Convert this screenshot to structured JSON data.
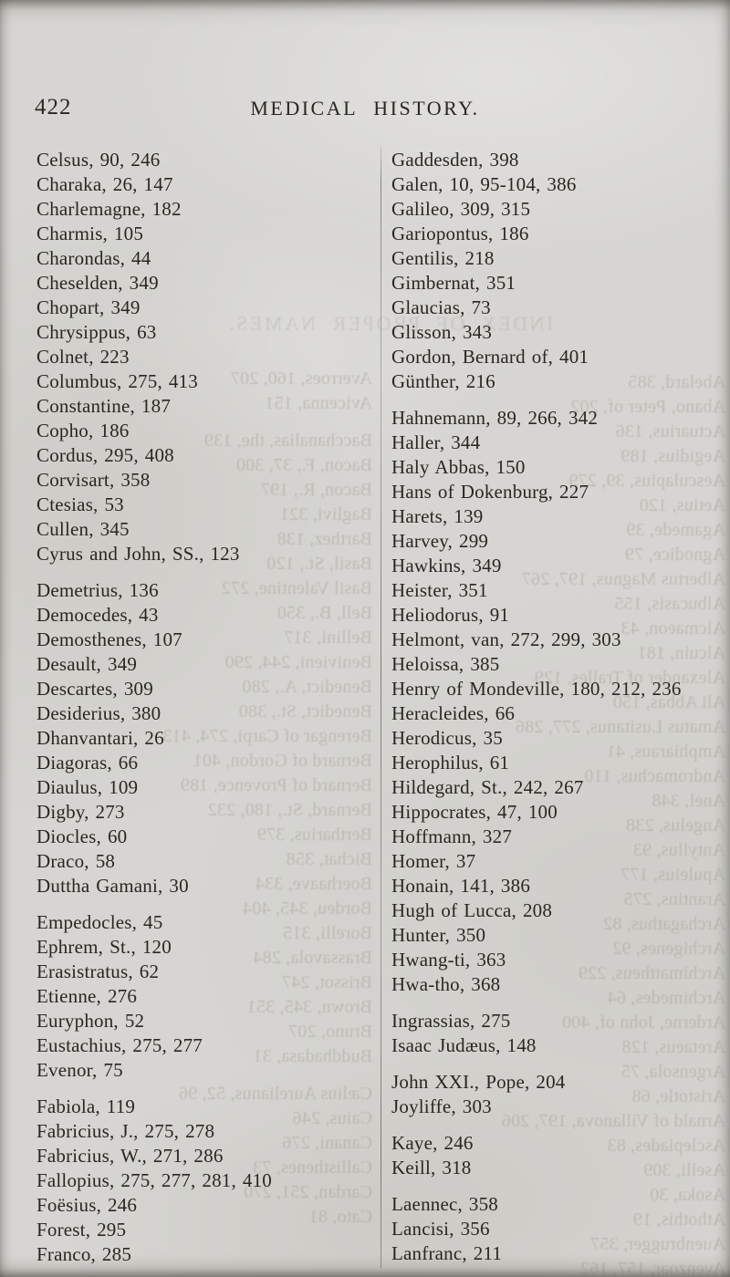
{
  "page": {
    "number": "422",
    "title": "MEDICAL HISTORY."
  },
  "index": {
    "left_column": [
      [
        "Celsus, 90, 246",
        "Charaka, 26, 147",
        "Charlemagne, 182",
        "Charmis, 105",
        "Charondas, 44",
        "Cheselden, 349",
        "Chopart, 349",
        "Chrysippus, 63",
        "Colnet, 223",
        "Columbus, 275, 413",
        "Constantine, 187",
        "Copho, 186",
        "Cordus, 295, 408",
        "Corvisart, 358",
        "Ctesias, 53",
        "Cullen, 345",
        "Cyrus and John, SS., 123"
      ],
      [
        "Demetrius, 136",
        "Democedes, 43",
        "Demosthenes, 107",
        "Desault, 349",
        "Descartes, 309",
        "Desiderius, 380",
        "Dhanvantari, 26",
        "Diagoras, 66",
        "Diaulus, 109",
        "Digby, 273",
        "Diocles, 60",
        "Draco, 58",
        "Duttha Gamani, 30"
      ],
      [
        "Empedocles, 45",
        "Ephrem, St., 120",
        "Erasistratus, 62",
        "Etienne, 276",
        "Euryphon, 52",
        "Eustachius, 275, 277",
        "Evenor, 75"
      ],
      [
        "Fabiola, 119",
        "Fabricius, J., 275, 278",
        "Fabricius, W., 271, 286",
        "Fallopius, 275, 277, 281, 410",
        "Foësius, 246",
        "Forest, 295",
        "Franco, 285"
      ]
    ],
    "right_column": [
      [
        "Gaddesden, 398",
        "Galen, 10, 95-104, 386",
        "Galileo, 309, 315",
        "Gariopontus, 186",
        "Gentilis, 218",
        "Gimbernat, 351",
        "Glaucias, 73",
        "Glisson, 343",
        "Gordon, Bernard of, 401",
        "Günther, 216"
      ],
      [
        "Hahnemann, 89, 266, 342",
        "Haller, 344",
        "Haly Abbas, 150",
        "Hans of Dokenburg, 227",
        "Harets, 139",
        "Harvey, 299",
        "Hawkins, 349",
        "Heister, 351",
        "Heliodorus, 91",
        "Helmont, van, 272, 299, 303",
        "Heloissa, 385",
        "Henry of Mondeville, 180, 212, 236",
        "Heracleides, 66",
        "Herodicus, 35",
        "Herophilus, 61",
        "Hildegard, St., 242, 267",
        "Hippocrates, 47, 100",
        "Hoffmann, 327",
        "Homer, 37",
        "Honain, 141, 386",
        "Hugh of Lucca, 208",
        "Hunter, 350",
        "Hwang-ti, 363",
        "Hwa-tho, 368"
      ],
      [
        "Ingrassias, 275",
        "Isaac Judæus, 148"
      ],
      [
        "John XXI., Pope, 204",
        "Joyliffe, 303"
      ],
      [
        "Kaye, 246",
        "Keill, 318"
      ],
      [
        "Laennec, 358",
        "Lancisi, 356",
        "Lanfranc, 211"
      ]
    ]
  },
  "bleedthrough": {
    "header": "INDEX OF PROPER NAMES.",
    "column_b": [
      [
        "Averroes, 160, 207",
        "Avicenna, 151"
      ],
      [
        "Bacchanalias, the, 139",
        "Bacon, F., 37, 300",
        "Bacon, R., 197",
        "Baglivi, 321",
        "Barthez, 138",
        "Basil, St., 120",
        "Basil Valentine, 272",
        "Bell, B., 350",
        "Bellini, 317",
        "Benivieni, 244, 290",
        "Benedict, A., 280",
        "Benedict, St., 380",
        "Berengar of Carpi, 274, 413",
        "Bernard of Gordon, 401",
        "Bernard of Provence, 189",
        "Bernard, St., 180, 232",
        "Bertharius, 379",
        "Bichat, 358",
        "Boerhaave, 334",
        "Bordeu, 345, 404",
        "Borelli, 315",
        "Brassavola, 284",
        "Brissot, 247",
        "Brown, 345, 351",
        "Bruno, 207",
        "Buddhadasa, 31"
      ],
      [
        "Cælius Aurelianus, 52, 96",
        "Caius, 246",
        "Canani, 276",
        "Callisthenes, 73",
        "Cardan, 251, 270",
        "Cato, 81"
      ]
    ],
    "column_a": [
      [
        "Abelard, 385",
        "Abano, Peter of, 202",
        "Actuarius, 136",
        "Aegidius, 189",
        "Aesculapius, 39, 279",
        "Aetius, 120",
        "Agamede, 39",
        "Agnodice, 79",
        "Albertus Magnus, 197, 267",
        "Albucasis, 155",
        "Alcmaeon, 43",
        "Alcuin, 181",
        "Alexander of Tralles, 129",
        "Ali Abbas, 150",
        "Amatus Lusitanus, 277, 286",
        "Amphiaraus, 41",
        "Andromachus, 110",
        "Anel, 348",
        "Angelus, 238",
        "Antyllus, 93",
        "Apuleius, 177",
        "Arantius, 275",
        "Archagathus, 82",
        "Archigenes, 92",
        "Archimattheus, 229",
        "Archimedes, 64",
        "Arderne, John of, 400",
        "Aretaeus, 128",
        "Argensola, 75",
        "Aristotle, 68",
        "Arnald of Villanova, 197, 206",
        "Asclepiades, 83",
        "Aselli, 309",
        "Asoka, 30",
        "Athothis, 19",
        "Auenbrugger, 357",
        "Avenzoar, 157, 162"
      ]
    ]
  },
  "colors": {
    "paper": "#d6d5d1",
    "ink": "#2a2722",
    "bleed_ink": "#8e8c85",
    "divider": "#48453d"
  }
}
